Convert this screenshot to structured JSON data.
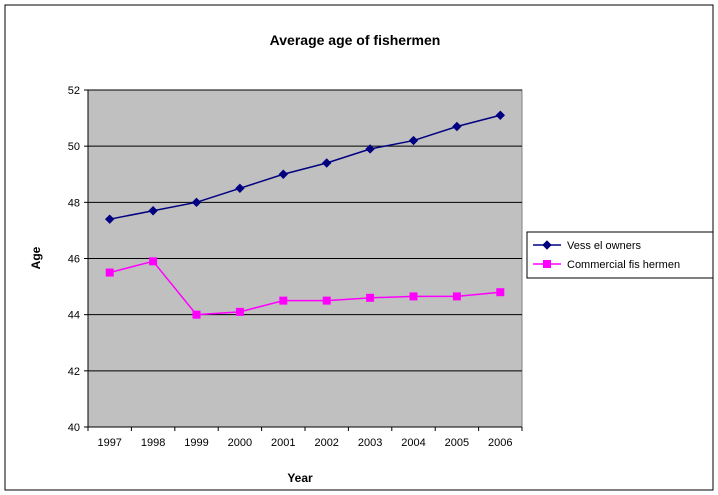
{
  "chart_data": {
    "type": "line",
    "title": "Average age of fishermen",
    "xlabel": "Year",
    "ylabel": "Age",
    "categories": [
      "1997",
      "1998",
      "1999",
      "2000",
      "2001",
      "2002",
      "2003",
      "2004",
      "2005",
      "2006"
    ],
    "ylim": [
      40,
      52
    ],
    "yticks": [
      "40",
      "42",
      "44",
      "46",
      "48",
      "50",
      "52"
    ],
    "grid": true,
    "legend_position": "right",
    "series": [
      {
        "name": "Vess el owners",
        "color": "#000080",
        "marker": "diamond",
        "values": [
          47.4,
          47.7,
          48.0,
          48.5,
          49.0,
          49.4,
          49.9,
          50.2,
          50.7,
          51.1
        ]
      },
      {
        "name": "Commercial fis hermen",
        "color": "#ff00ff",
        "marker": "square",
        "values": [
          45.5,
          45.9,
          44.0,
          44.1,
          44.5,
          44.5,
          44.6,
          44.65,
          44.65,
          44.8
        ]
      }
    ],
    "plot_background": "#c0c0c0"
  }
}
